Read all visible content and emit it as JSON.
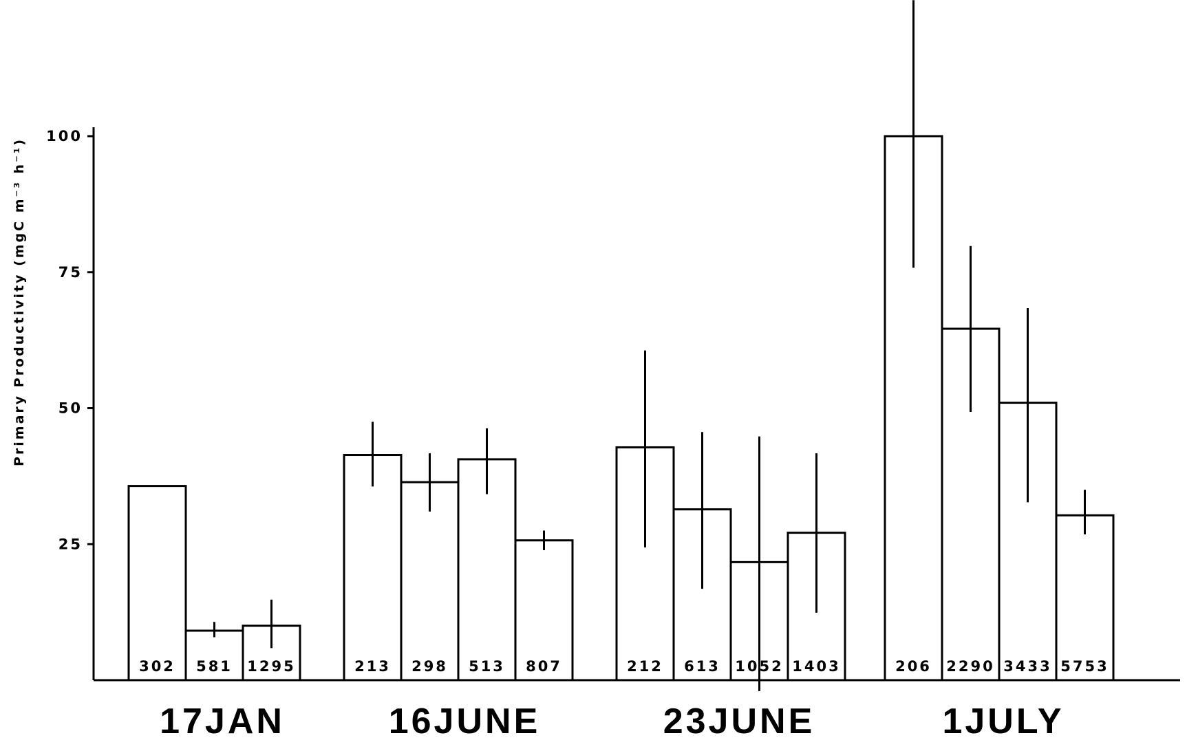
{
  "chart_data": {
    "type": "bar",
    "title": "",
    "xlabel": "",
    "ylabel": "Primary Productivity (mgC m⁻³ h⁻¹)",
    "ylim": [
      0,
      100
    ],
    "yticks": [
      "25",
      "50",
      "75",
      "100"
    ],
    "grid": false,
    "groups": [
      {
        "label": "17JAN",
        "bars": [
          {
            "label": "302",
            "value": 35.7
          },
          {
            "label": "581",
            "value": 9.1,
            "err_low": 7.9,
            "err_high": 10.7
          },
          {
            "label": "1295",
            "value": 10.0,
            "err_low": 5.9,
            "err_high": 14.8
          }
        ]
      },
      {
        "label": "16JUNE",
        "bars": [
          {
            "label": "213",
            "value": 41.4,
            "err_low": 35.6,
            "err_high": 47.5
          },
          {
            "label": "298",
            "value": 36.4,
            "err_low": 31.0,
            "err_high": 41.7
          },
          {
            "label": "513",
            "value": 40.6,
            "err_low": 34.2,
            "err_high": 46.3
          },
          {
            "label": "807",
            "value": 25.7,
            "err_low": 23.9,
            "err_high": 27.5
          }
        ]
      },
      {
        "label": "23JUNE",
        "bars": [
          {
            "label": "212",
            "value": 42.8,
            "err_low": 24.4,
            "err_high": 60.6
          },
          {
            "label": "613",
            "value": 31.4,
            "err_low": 16.8,
            "err_high": 45.6
          },
          {
            "label": "1052",
            "value": 21.7,
            "err_low": -2.0,
            "err_high": 44.8
          },
          {
            "label": "1403",
            "value": 27.1,
            "err_low": 12.4,
            "err_high": 41.7
          }
        ]
      },
      {
        "label": "1JULY",
        "bars": [
          {
            "label": "206",
            "value": 100.0,
            "err_low": 75.8,
            "err_high": 125.0
          },
          {
            "label": "2290",
            "value": 64.6,
            "err_low": 49.3,
            "err_high": 79.8
          },
          {
            "label": "3433",
            "value": 51.0,
            "err_low": 32.7,
            "err_high": 68.4
          },
          {
            "label": "5753",
            "value": 30.3,
            "err_low": 26.8,
            "err_high": 35.0
          }
        ]
      }
    ]
  }
}
